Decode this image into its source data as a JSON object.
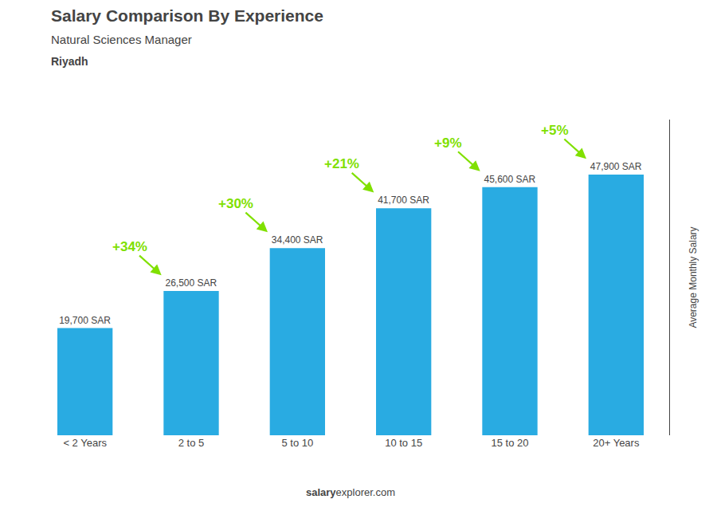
{
  "chart_data": {
    "type": "bar",
    "title": "Salary Comparison By Experience",
    "subtitle": [
      "Natural Sciences Manager",
      "Riyadh"
    ],
    "categories": [
      "< 2 Years",
      "2 to 5",
      "5 to 10",
      "10 to 15",
      "15 to 20",
      "20+ Years"
    ],
    "values": [
      19700,
      26500,
      34400,
      41700,
      45600,
      47900
    ],
    "value_labels": [
      "19,700 SAR",
      "26,500 SAR",
      "34,400 SAR",
      "41,700 SAR",
      "45,600 SAR",
      "47,900 SAR"
    ],
    "data_labels": true,
    "color": "#29ABE2",
    "annotations": [
      {
        "text": "+34%",
        "color": "#80E000"
      },
      {
        "text": "+30%",
        "color": "#80E000"
      },
      {
        "text": "+21%",
        "color": "#80E000"
      },
      {
        "text": "+9%",
        "color": "#80E000"
      },
      {
        "text": "+5%",
        "color": "#80E000"
      }
    ],
    "y_label": "Average Monthly Salary",
    "footer": [
      "salary",
      "explorer.com"
    ],
    "ylim": [
      0,
      58000
    ],
    "yticks": [],
    "tick_labels": "x",
    "grid": false
  }
}
